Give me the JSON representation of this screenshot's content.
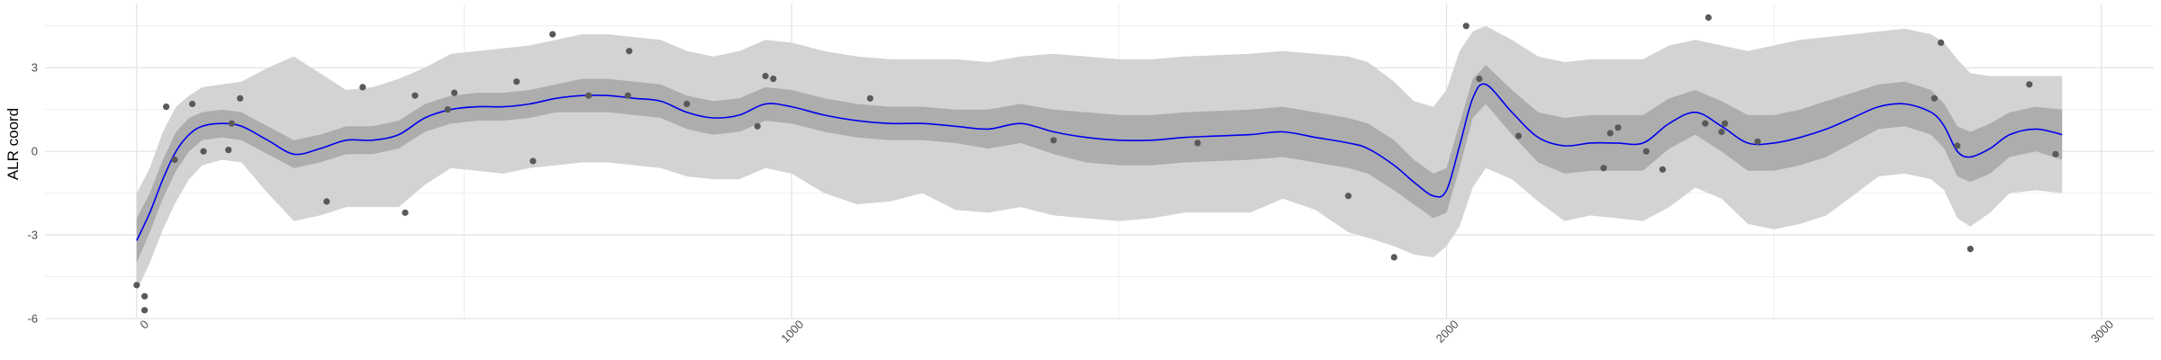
{
  "chart_data": {
    "type": "line",
    "title": "",
    "xlabel": "",
    "ylabel": "ALR coord",
    "xlim": [
      -140,
      3080
    ],
    "ylim": [
      -6.0,
      5.3
    ],
    "x_ticks": [
      0,
      1000,
      2000,
      3000
    ],
    "x_tick_labels": [
      "0",
      "1000",
      "2000",
      "3000"
    ],
    "y_ticks": [
      -6,
      -3,
      0,
      3
    ],
    "y_tick_labels": [
      "-6",
      "-3",
      "0",
      "3"
    ],
    "grid": true,
    "legend": "none",
    "colors": {
      "line": "#0000ee",
      "inner_band": "#adadad",
      "outer_band": "#d3d3d3",
      "points": "#595959",
      "grid": "#ebebeb"
    },
    "fit_line": {
      "x": [
        0,
        20,
        40,
        60,
        80,
        100,
        130,
        160,
        200,
        240,
        280,
        320,
        360,
        400,
        440,
        480,
        520,
        560,
        600,
        640,
        680,
        720,
        760,
        800,
        840,
        880,
        920,
        960,
        1000,
        1050,
        1100,
        1150,
        1200,
        1250,
        1300,
        1350,
        1400,
        1450,
        1500,
        1550,
        1600,
        1650,
        1700,
        1750,
        1800,
        1850,
        1880,
        1920,
        1950,
        1980,
        2000,
        2020,
        2040,
        2060,
        2100,
        2140,
        2180,
        2220,
        2260,
        2300,
        2340,
        2380,
        2420,
        2460,
        2500,
        2540,
        2580,
        2620,
        2660,
        2700,
        2740,
        2760,
        2780,
        2800,
        2830,
        2860,
        2900,
        2940
      ],
      "y": [
        -3.2,
        -2.2,
        -1.0,
        0.0,
        0.6,
        0.9,
        1.0,
        0.9,
        0.4,
        -0.1,
        0.1,
        0.4,
        0.4,
        0.6,
        1.2,
        1.5,
        1.6,
        1.6,
        1.7,
        1.9,
        2.0,
        2.0,
        1.9,
        1.8,
        1.4,
        1.2,
        1.3,
        1.7,
        1.6,
        1.3,
        1.1,
        1.0,
        1.0,
        0.9,
        0.8,
        1.0,
        0.7,
        0.5,
        0.4,
        0.4,
        0.5,
        0.55,
        0.6,
        0.7,
        0.5,
        0.3,
        0.1,
        -0.5,
        -1.1,
        -1.6,
        -1.4,
        0.2,
        1.9,
        2.4,
        1.4,
        0.5,
        0.2,
        0.3,
        0.3,
        0.3,
        1.0,
        1.4,
        0.9,
        0.3,
        0.3,
        0.5,
        0.8,
        1.2,
        1.6,
        1.7,
        1.4,
        0.9,
        0.0,
        -0.2,
        0.1,
        0.6,
        0.8,
        0.6
      ]
    },
    "inner_band": {
      "upper": [
        -2.4,
        -1.5,
        -0.3,
        0.7,
        1.2,
        1.4,
        1.5,
        1.4,
        0.9,
        0.4,
        0.6,
        0.9,
        0.9,
        1.1,
        1.7,
        2.0,
        2.1,
        2.1,
        2.2,
        2.4,
        2.6,
        2.6,
        2.5,
        2.4,
        2.0,
        1.8,
        1.9,
        2.3,
        2.2,
        1.9,
        1.7,
        1.6,
        1.6,
        1.5,
        1.5,
        1.7,
        1.5,
        1.4,
        1.3,
        1.3,
        1.4,
        1.45,
        1.5,
        1.6,
        1.4,
        1.2,
        1.0,
        0.4,
        -0.3,
        -0.8,
        -0.6,
        1.0,
        2.6,
        3.1,
        2.2,
        1.4,
        1.2,
        1.3,
        1.3,
        1.3,
        1.9,
        2.2,
        1.8,
        1.3,
        1.3,
        1.5,
        1.8,
        2.1,
        2.4,
        2.5,
        2.2,
        1.7,
        0.9,
        0.7,
        1.0,
        1.4,
        1.6,
        1.5
      ],
      "lower": [
        -4.0,
        -2.9,
        -1.7,
        -0.7,
        0.0,
        0.4,
        0.5,
        0.4,
        -0.1,
        -0.6,
        -0.4,
        -0.1,
        -0.1,
        0.1,
        0.7,
        1.0,
        1.1,
        1.1,
        1.2,
        1.4,
        1.4,
        1.4,
        1.3,
        1.2,
        0.8,
        0.6,
        0.7,
        1.1,
        1.0,
        0.7,
        0.5,
        0.4,
        0.4,
        0.3,
        0.1,
        0.3,
        -0.1,
        -0.4,
        -0.5,
        -0.5,
        -0.4,
        -0.35,
        -0.3,
        -0.2,
        -0.4,
        -0.6,
        -0.8,
        -1.4,
        -1.9,
        -2.4,
        -2.2,
        -0.6,
        1.2,
        1.7,
        0.6,
        -0.4,
        -0.8,
        -0.7,
        -0.7,
        -0.7,
        0.1,
        0.6,
        0.0,
        -0.7,
        -0.7,
        -0.5,
        -0.2,
        0.3,
        0.8,
        0.9,
        0.6,
        0.1,
        -0.9,
        -1.1,
        -0.8,
        -0.2,
        0.0,
        -0.3
      ]
    },
    "outer_band": {
      "upper": [
        -1.5,
        -0.6,
        0.7,
        1.6,
        2.0,
        2.3,
        2.4,
        2.5,
        3.0,
        3.4,
        2.8,
        2.2,
        2.3,
        2.6,
        3.0,
        3.5,
        3.6,
        3.7,
        3.8,
        4.0,
        4.2,
        4.2,
        4.1,
        4.0,
        3.6,
        3.4,
        3.6,
        4.0,
        3.9,
        3.6,
        3.4,
        3.3,
        3.3,
        3.3,
        3.2,
        3.4,
        3.5,
        3.4,
        3.3,
        3.3,
        3.4,
        3.45,
        3.5,
        3.6,
        3.5,
        3.4,
        3.2,
        2.5,
        1.8,
        1.6,
        2.2,
        3.6,
        4.3,
        4.5,
        4.0,
        3.4,
        3.2,
        3.3,
        3.3,
        3.3,
        3.8,
        4.0,
        3.8,
        3.6,
        3.8,
        4.0,
        4.1,
        4.2,
        4.3,
        4.4,
        4.2,
        3.9,
        3.3,
        2.8,
        2.7,
        2.7,
        2.7,
        2.7
      ],
      "lower": [
        -5.0,
        -4.0,
        -2.8,
        -1.8,
        -1.0,
        -0.5,
        -0.3,
        -0.4,
        -1.5,
        -2.5,
        -2.3,
        -2.0,
        -2.0,
        -2.0,
        -1.2,
        -0.6,
        -0.7,
        -0.8,
        -0.6,
        -0.5,
        -0.4,
        -0.4,
        -0.5,
        -0.6,
        -0.9,
        -1.0,
        -1.0,
        -0.6,
        -0.8,
        -1.5,
        -1.9,
        -1.8,
        -1.5,
        -2.1,
        -2.2,
        -2.0,
        -2.3,
        -2.4,
        -2.5,
        -2.4,
        -2.2,
        -2.2,
        -2.2,
        -1.7,
        -2.1,
        -2.9,
        -3.1,
        -3.4,
        -3.7,
        -3.8,
        -3.4,
        -2.7,
        -1.3,
        -0.6,
        -1.0,
        -1.8,
        -2.5,
        -2.3,
        -2.4,
        -2.5,
        -2.0,
        -1.3,
        -1.7,
        -2.6,
        -2.8,
        -2.6,
        -2.3,
        -1.6,
        -0.9,
        -0.8,
        -1.0,
        -1.4,
        -2.4,
        -2.7,
        -2.2,
        -1.5,
        -1.4,
        -1.5
      ]
    },
    "points": [
      {
        "x": 0,
        "y": -4.8
      },
      {
        "x": 12,
        "y": -5.2
      },
      {
        "x": 12,
        "y": -5.7
      },
      {
        "x": 45,
        "y": 1.6
      },
      {
        "x": 58,
        "y": -0.3
      },
      {
        "x": 85,
        "y": 1.7
      },
      {
        "x": 102,
        "y": 0.0
      },
      {
        "x": 140,
        "y": 0.05
      },
      {
        "x": 145,
        "y": 1.0
      },
      {
        "x": 158,
        "y": 1.9
      },
      {
        "x": 290,
        "y": -1.8
      },
      {
        "x": 345,
        "y": 2.3
      },
      {
        "x": 410,
        "y": -2.2
      },
      {
        "x": 425,
        "y": 2.0
      },
      {
        "x": 475,
        "y": 1.5
      },
      {
        "x": 485,
        "y": 2.1
      },
      {
        "x": 580,
        "y": 2.5
      },
      {
        "x": 605,
        "y": -0.35
      },
      {
        "x": 635,
        "y": 4.2
      },
      {
        "x": 690,
        "y": 2.0
      },
      {
        "x": 750,
        "y": 2.0
      },
      {
        "x": 752,
        "y": 3.6
      },
      {
        "x": 840,
        "y": 1.7
      },
      {
        "x": 948,
        "y": 0.9
      },
      {
        "x": 960,
        "y": 2.7
      },
      {
        "x": 972,
        "y": 2.6
      },
      {
        "x": 1120,
        "y": 1.9
      },
      {
        "x": 1400,
        "y": 0.4
      },
      {
        "x": 1620,
        "y": 0.3
      },
      {
        "x": 1850,
        "y": -1.6
      },
      {
        "x": 1920,
        "y": -3.8
      },
      {
        "x": 2030,
        "y": 4.5
      },
      {
        "x": 2050,
        "y": 2.6
      },
      {
        "x": 2110,
        "y": 0.55
      },
      {
        "x": 2240,
        "y": -0.6
      },
      {
        "x": 2250,
        "y": 0.65
      },
      {
        "x": 2262,
        "y": 0.85
      },
      {
        "x": 2305,
        "y": 0.0
      },
      {
        "x": 2330,
        "y": -0.65
      },
      {
        "x": 2395,
        "y": 1.0
      },
      {
        "x": 2400,
        "y": 4.8
      },
      {
        "x": 2420,
        "y": 0.7
      },
      {
        "x": 2425,
        "y": 1.0
      },
      {
        "x": 2475,
        "y": 0.35
      },
      {
        "x": 2745,
        "y": 1.9
      },
      {
        "x": 2755,
        "y": 3.9
      },
      {
        "x": 2780,
        "y": 0.2
      },
      {
        "x": 2800,
        "y": -3.5
      },
      {
        "x": 2890,
        "y": 2.4
      },
      {
        "x": 2930,
        "y": -0.1
      }
    ]
  }
}
